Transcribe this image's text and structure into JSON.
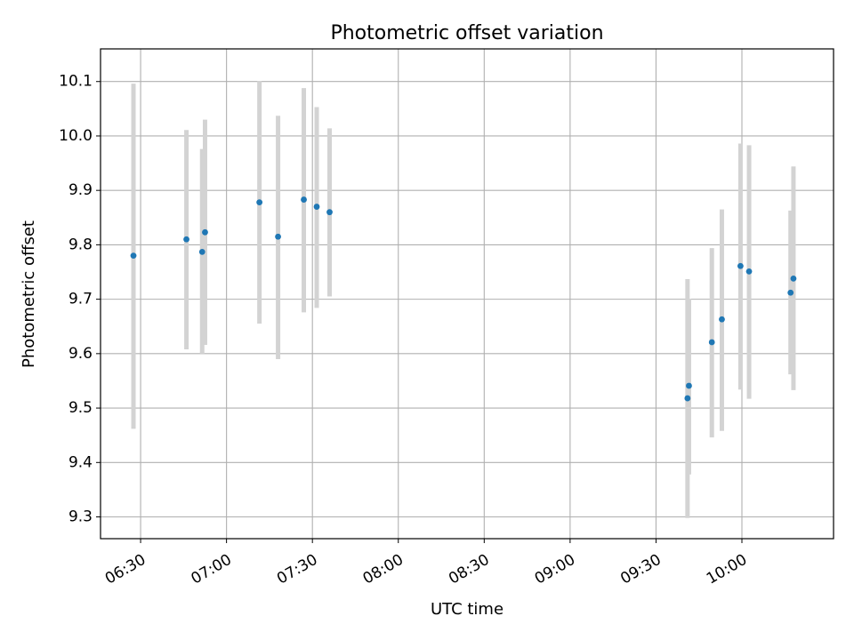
{
  "chart_data": {
    "type": "scatter",
    "title": "Photometric offset variation",
    "xlabel": "UTC time",
    "ylabel": "Photometric offset",
    "grid": true,
    "xlim": [
      "06:16",
      "10:32"
    ],
    "ylim": [
      9.26,
      10.16
    ],
    "x_ticks": [
      "06:30",
      "07:00",
      "07:30",
      "08:00",
      "08:30",
      "09:00",
      "09:30",
      "10:00"
    ],
    "y_ticks": [
      "9.3",
      "9.4",
      "9.5",
      "9.6",
      "9.7",
      "9.8",
      "9.9",
      "10.0",
      "10.1"
    ],
    "point_color": "#1f77b4",
    "errorbar_color": "#d3d3d3",
    "points": [
      {
        "x": "06:27:30",
        "y": 9.78,
        "ylow": 9.462,
        "yhigh": 10.096
      },
      {
        "x": "06:46:00",
        "y": 9.81,
        "ylow": 9.608,
        "yhigh": 10.011
      },
      {
        "x": "06:51:30",
        "y": 9.787,
        "ylow": 9.6,
        "yhigh": 9.976
      },
      {
        "x": "06:52:30",
        "y": 9.823,
        "ylow": 9.616,
        "yhigh": 10.03
      },
      {
        "x": "07:11:30",
        "y": 9.878,
        "ylow": 9.655,
        "yhigh": 10.101
      },
      {
        "x": "07:18:00",
        "y": 9.815,
        "ylow": 9.59,
        "yhigh": 10.037
      },
      {
        "x": "07:27:00",
        "y": 9.883,
        "ylow": 9.676,
        "yhigh": 10.088
      },
      {
        "x": "07:31:30",
        "y": 9.87,
        "ylow": 9.684,
        "yhigh": 10.053
      },
      {
        "x": "07:36:00",
        "y": 9.86,
        "ylow": 9.705,
        "yhigh": 10.014
      },
      {
        "x": "09:41:00",
        "y": 9.518,
        "ylow": 9.298,
        "yhigh": 9.737
      },
      {
        "x": "09:41:30",
        "y": 9.541,
        "ylow": 9.378,
        "yhigh": 9.701
      },
      {
        "x": "09:49:30",
        "y": 9.621,
        "ylow": 9.446,
        "yhigh": 9.794
      },
      {
        "x": "09:53:00",
        "y": 9.663,
        "ylow": 9.458,
        "yhigh": 9.865
      },
      {
        "x": "09:59:30",
        "y": 9.761,
        "ylow": 9.534,
        "yhigh": 9.986
      },
      {
        "x": "10:02:30",
        "y": 9.751,
        "ylow": 9.517,
        "yhigh": 9.983
      },
      {
        "x": "10:17:00",
        "y": 9.712,
        "ylow": 9.562,
        "yhigh": 9.863
      },
      {
        "x": "10:18:00",
        "y": 9.738,
        "ylow": 9.533,
        "yhigh": 9.944
      }
    ]
  }
}
